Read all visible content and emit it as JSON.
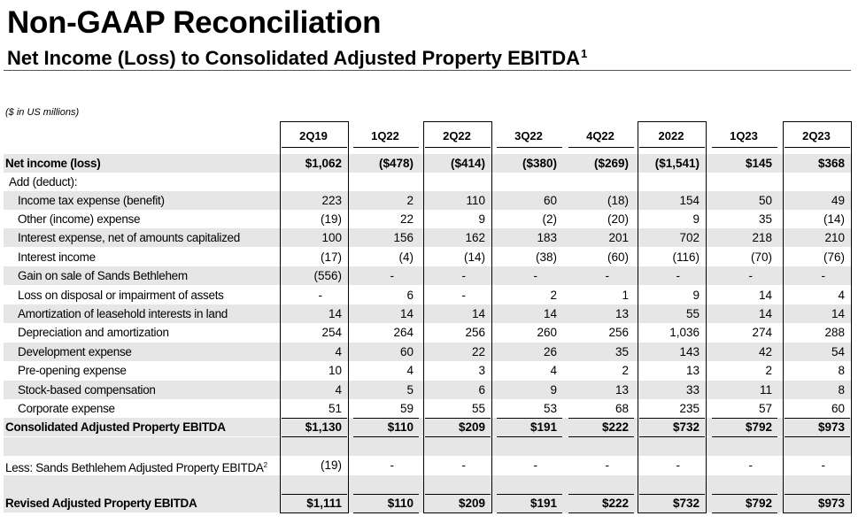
{
  "header": {
    "title": "Non-GAAP Reconciliation",
    "subtitle": "Net Income (Loss) to Consolidated Adjusted Property EBITDA",
    "subtitle_note": "1",
    "units": "($ in US millions)"
  },
  "columns": [
    "2Q19",
    "1Q22",
    "2Q22",
    "3Q22",
    "4Q22",
    "2022",
    "1Q23",
    "2Q23"
  ],
  "rows": [
    {
      "label": "Net income (loss)",
      "values": [
        "$1,062",
        "($478)",
        "($414)",
        "($380)",
        "($269)",
        "($1,541)",
        "$145",
        "$368"
      ]
    },
    {
      "label": "Add (deduct):",
      "values": [
        "",
        "",
        "",
        "",
        "",
        "",
        "",
        ""
      ]
    },
    {
      "label": "Income tax expense (benefit)",
      "values": [
        "223",
        "2",
        "110",
        "60",
        "(18)",
        "154",
        "50",
        "49"
      ]
    },
    {
      "label": "Other (income) expense",
      "values": [
        "(19)",
        "22",
        "9",
        "(2)",
        "(20)",
        "9",
        "35",
        "(14)"
      ]
    },
    {
      "label": "Interest expense, net of amounts capitalized",
      "values": [
        "100",
        "156",
        "162",
        "183",
        "201",
        "702",
        "218",
        "210"
      ]
    },
    {
      "label": "Interest income",
      "values": [
        "(17)",
        "(4)",
        "(14)",
        "(38)",
        "(60)",
        "(116)",
        "(70)",
        "(76)"
      ]
    },
    {
      "label": "Gain on sale of Sands Bethlehem",
      "values": [
        "(556)",
        "-",
        "-",
        "-",
        "-",
        "-",
        "-",
        "-"
      ]
    },
    {
      "label": "Loss on disposal or impairment of assets",
      "values": [
        "-",
        "6",
        "-",
        "2",
        "1",
        "9",
        "14",
        "4"
      ]
    },
    {
      "label": "Amortization of leasehold interests in land",
      "values": [
        "14",
        "14",
        "14",
        "14",
        "13",
        "55",
        "14",
        "14"
      ]
    },
    {
      "label": "Depreciation and amortization",
      "values": [
        "254",
        "264",
        "256",
        "260",
        "256",
        "1,036",
        "274",
        "288"
      ]
    },
    {
      "label": "Development expense",
      "values": [
        "4",
        "60",
        "22",
        "26",
        "35",
        "143",
        "42",
        "54"
      ]
    },
    {
      "label": "Pre-opening expense",
      "values": [
        "10",
        "4",
        "3",
        "4",
        "2",
        "13",
        "2",
        "8"
      ]
    },
    {
      "label": "Stock-based compensation",
      "values": [
        "4",
        "5",
        "6",
        "9",
        "13",
        "33",
        "11",
        "8"
      ]
    },
    {
      "label": "Corporate expense",
      "values": [
        "51",
        "59",
        "55",
        "53",
        "68",
        "235",
        "57",
        "60"
      ]
    },
    {
      "label": "Consolidated Adjusted Property EBITDA",
      "values": [
        "$1,130",
        "$110",
        "$209",
        "$191",
        "$222",
        "$732",
        "$792",
        "$973"
      ]
    },
    {
      "label": "Less: Sands Bethlehem Adjusted Property EBITDA",
      "note": "2",
      "values": [
        "(19)",
        "-",
        "-",
        "-",
        "-",
        "-",
        "-",
        "-"
      ]
    },
    {
      "label": "Revised Adjusted Property EBITDA",
      "values": [
        "$1,111",
        "$110",
        "$209",
        "$191",
        "$222",
        "$732",
        "$792",
        "$973"
      ]
    }
  ],
  "colors": {
    "shade": "#e6e6e6",
    "text": "#000000",
    "rule": "#555555"
  }
}
